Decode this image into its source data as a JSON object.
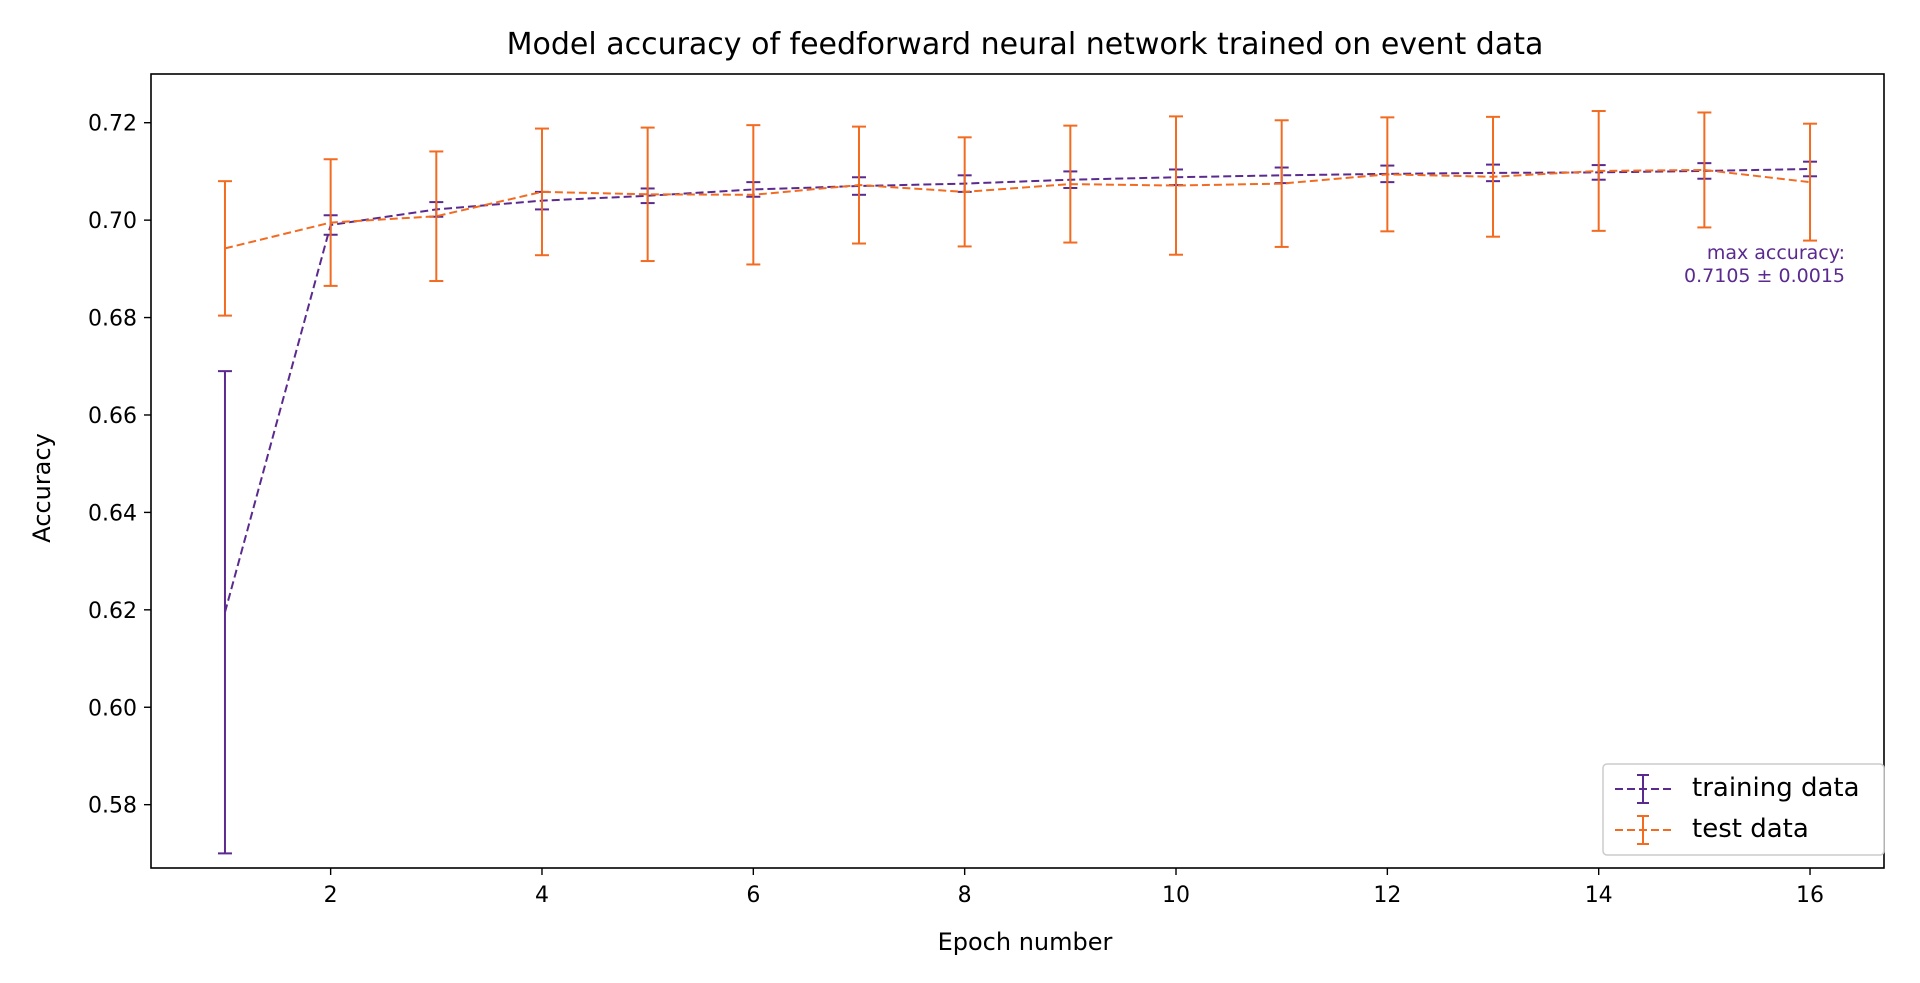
{
  "chart_data": {
    "type": "line",
    "title": "Model accuracy of feedforward neural network trained on event data",
    "xlabel": "Epoch number",
    "ylabel": "Accuracy",
    "xlim": [
      0.3,
      16.7
    ],
    "ylim": [
      0.567,
      0.73
    ],
    "xticks": [
      2,
      4,
      6,
      8,
      10,
      12,
      14,
      16
    ],
    "yticks": [
      0.58,
      0.6,
      0.62,
      0.64,
      0.66,
      0.68,
      0.7,
      0.72
    ],
    "ytick_labels": [
      "0.58",
      "0.60",
      "0.62",
      "0.64",
      "0.66",
      "0.68",
      "0.70",
      "0.72"
    ],
    "grid": false,
    "legend_position": "bottom-right",
    "x": [
      1,
      2,
      3,
      4,
      5,
      6,
      7,
      8,
      9,
      10,
      11,
      12,
      13,
      14,
      15,
      16
    ],
    "series": [
      {
        "name": "training data",
        "color": "#5b2a8e",
        "line_style": "dashed",
        "values": [
          0.6195,
          0.699,
          0.7022,
          0.704,
          0.705,
          0.7063,
          0.707,
          0.7075,
          0.7083,
          0.7088,
          0.7092,
          0.7095,
          0.7097,
          0.7098,
          0.7101,
          0.7105
        ],
        "errors": [
          0.0495,
          0.002,
          0.0015,
          0.0018,
          0.0015,
          0.0015,
          0.0018,
          0.0017,
          0.0017,
          0.0016,
          0.0016,
          0.0017,
          0.0017,
          0.0015,
          0.0016,
          0.0015
        ]
      },
      {
        "name": "test data",
        "color": "#f26b21",
        "line_style": "dashed",
        "values": [
          0.6942,
          0.6995,
          0.7008,
          0.7058,
          0.7053,
          0.7052,
          0.7072,
          0.7058,
          0.7074,
          0.7071,
          0.7075,
          0.7094,
          0.7089,
          0.7101,
          0.7103,
          0.7078
        ],
        "errors": [
          0.0138,
          0.013,
          0.0133,
          0.013,
          0.0137,
          0.0143,
          0.012,
          0.0112,
          0.012,
          0.0142,
          0.013,
          0.0117,
          0.0123,
          0.0123,
          0.0118,
          0.012
        ]
      }
    ],
    "annotations": [
      {
        "text_line1": "max accuracy:",
        "text_line2": "0.7105 ± 0.0015",
        "color": "#5b2a8e"
      }
    ]
  }
}
